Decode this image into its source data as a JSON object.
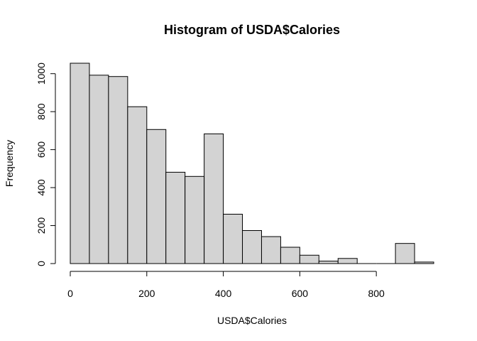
{
  "chart_data": {
    "type": "bar",
    "subtype": "histogram",
    "title": "Histogram of USDA$Calories",
    "xlabel": "USDA$Calories",
    "ylabel": "Frequency",
    "bin_width": 50,
    "bins": [
      {
        "x0": 0,
        "x1": 50,
        "count": 1055
      },
      {
        "x0": 50,
        "x1": 100,
        "count": 992
      },
      {
        "x0": 100,
        "x1": 150,
        "count": 985
      },
      {
        "x0": 150,
        "x1": 200,
        "count": 826
      },
      {
        "x0": 200,
        "x1": 250,
        "count": 706
      },
      {
        "x0": 250,
        "x1": 300,
        "count": 481
      },
      {
        "x0": 300,
        "x1": 350,
        "count": 459
      },
      {
        "x0": 350,
        "x1": 400,
        "count": 683
      },
      {
        "x0": 400,
        "x1": 450,
        "count": 260
      },
      {
        "x0": 450,
        "x1": 500,
        "count": 174
      },
      {
        "x0": 500,
        "x1": 550,
        "count": 142
      },
      {
        "x0": 550,
        "x1": 600,
        "count": 86
      },
      {
        "x0": 600,
        "x1": 650,
        "count": 44
      },
      {
        "x0": 650,
        "x1": 700,
        "count": 13
      },
      {
        "x0": 700,
        "x1": 750,
        "count": 27
      },
      {
        "x0": 750,
        "x1": 800,
        "count": 0
      },
      {
        "x0": 800,
        "x1": 850,
        "count": 0
      },
      {
        "x0": 850,
        "x1": 900,
        "count": 106
      },
      {
        "x0": 900,
        "x1": 950,
        "count": 8
      }
    ],
    "xlim": [
      0,
      950
    ],
    "ylim": [
      0,
      1055
    ],
    "x_ticks": [
      0,
      200,
      400,
      600,
      800
    ],
    "y_ticks": [
      0,
      200,
      400,
      600,
      800,
      1000
    ],
    "grid": false,
    "bar_fill": "#d3d3d3",
    "bar_stroke": "#000000"
  }
}
